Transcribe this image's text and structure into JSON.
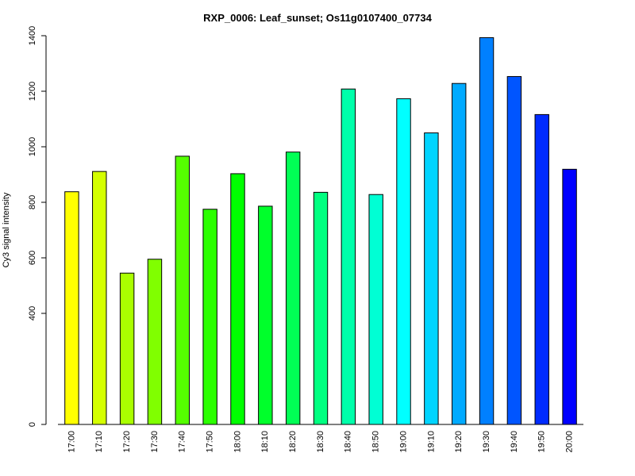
{
  "chart_data": {
    "type": "bar",
    "title": "RXP_0006: Leaf_sunset; Os11g0107400_07734",
    "xlabel": "",
    "ylabel": "Cy3 signal intensity",
    "ylim": [
      0,
      1400
    ],
    "yticks": [
      0,
      400,
      600,
      800,
      1000,
      1200,
      1400
    ],
    "categories": [
      "17:00",
      "17:10",
      "17:20",
      "17:30",
      "17:40",
      "17:50",
      "18:00",
      "18:10",
      "18:20",
      "18:30",
      "18:40",
      "18:50",
      "19:00",
      "19:10",
      "19:20",
      "19:30",
      "19:40",
      "19:50",
      "20:00"
    ],
    "values": [
      838,
      911,
      545,
      595,
      966,
      775,
      903,
      786,
      981,
      836,
      1208,
      828,
      1173,
      1050,
      1228,
      1393,
      1253,
      1116,
      919
    ],
    "colors": [
      "#ffff00",
      "#d4ff00",
      "#aaff00",
      "#80ff00",
      "#55ff00",
      "#2bff00",
      "#00ff00",
      "#00ff2b",
      "#00ff55",
      "#00ff80",
      "#00ffaa",
      "#00ffd4",
      "#00ffff",
      "#00d4ff",
      "#00aaff",
      "#0080ff",
      "#0055ff",
      "#002bff",
      "#0000ff"
    ],
    "grid": false,
    "legend": "none"
  }
}
